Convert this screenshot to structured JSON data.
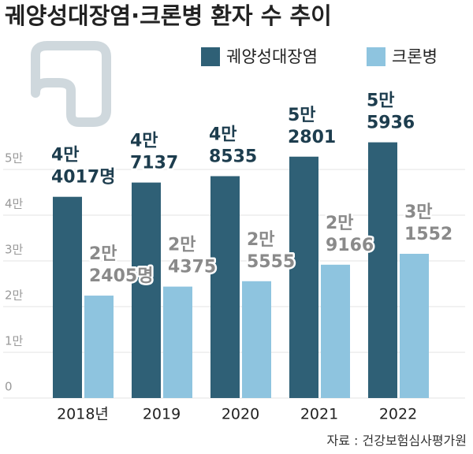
{
  "chart_data": {
    "type": "bar",
    "title": "궤양성대장염·크론병 환자 수 추이",
    "source": "자료 : 건강보험심사평가원",
    "categories": [
      "2018년",
      "2019",
      "2020",
      "2021",
      "2022"
    ],
    "series": [
      {
        "name": "궤양성대장염",
        "color": "#2f6076",
        "label_color": "#1d3d4e",
        "values": [
          44017,
          47137,
          48535,
          52801,
          55936
        ],
        "value_labels": [
          "4만 4017명",
          "4만 7137",
          "4만 8535",
          "5만 2801",
          "5만 5936"
        ]
      },
      {
        "name": "크론병",
        "color": "#8ec4df",
        "label_color": "#8a8a8a",
        "values": [
          22405,
          24375,
          25555,
          29166,
          31552
        ],
        "value_labels": [
          "2만 2405명",
          "2만 4375",
          "2만 5555",
          "2만 9166",
          "3만 1552"
        ]
      }
    ],
    "ylim": [
      0,
      60000
    ],
    "yticks": [
      0,
      {
        "value": 10000,
        "label": "1만"
      },
      {
        "value": 20000,
        "label": "2만"
      },
      {
        "value": 30000,
        "label": "3만"
      },
      {
        "value": 40000,
        "label": "4만"
      },
      {
        "value": 50000,
        "label": "5만"
      }
    ],
    "grid": true,
    "legend": "top-right"
  }
}
